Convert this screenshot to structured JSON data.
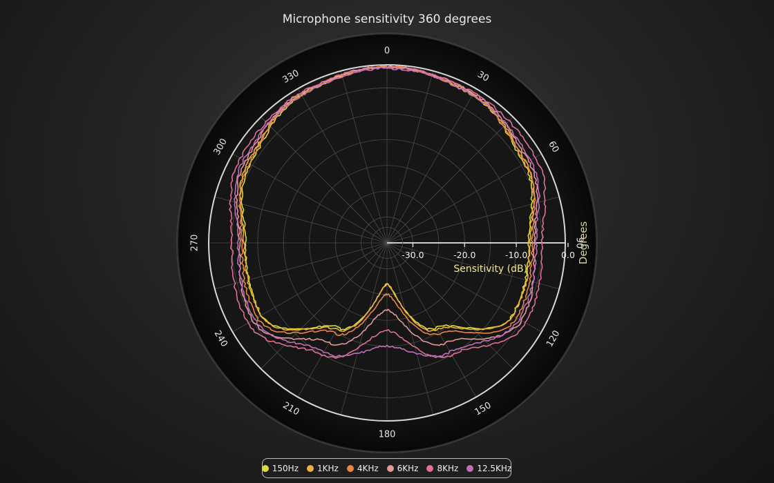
{
  "chart_data": {
    "type": "polar-line",
    "title": "Microphone sensitivity 360 degrees",
    "angular_axis": {
      "label": "Degrees",
      "ticks": [
        "0",
        "30",
        "60",
        "90",
        "120",
        "150",
        "180",
        "210",
        "240",
        "270",
        "300",
        "330"
      ],
      "direction": "clockwise",
      "zero_at": "top"
    },
    "radial_axis": {
      "label": "Sensitivity (dB)",
      "range": [
        -35,
        0
      ],
      "ticks": [
        "-30.0",
        "-20.0",
        "-10.0",
        "0.0"
      ]
    },
    "legend_position": "bottom",
    "grid": true,
    "series": [
      {
        "name": "150Hz",
        "color": "#d8dc3a",
        "angles": [
          0,
          30,
          60,
          90,
          120,
          150,
          180,
          210,
          240,
          270,
          300,
          330
        ],
        "values": [
          -0.9,
          -2.0,
          -4.4,
          -7.6,
          -7.0,
          -16.0,
          -27.0,
          -16.0,
          -7.0,
          -7.6,
          -4.5,
          -2.0
        ]
      },
      {
        "name": "1KHz",
        "color": "#f0b040",
        "angles": [
          0,
          30,
          60,
          90,
          120,
          150,
          180,
          210,
          240,
          270,
          300,
          330
        ],
        "values": [
          -0.9,
          -1.8,
          -4.0,
          -7.4,
          -6.9,
          -15.6,
          -27.0,
          -15.6,
          -6.9,
          -7.4,
          -4.0,
          -1.8
        ]
      },
      {
        "name": "4KHz",
        "color": "#e8864a",
        "angles": [
          0,
          30,
          60,
          90,
          120,
          150,
          180,
          210,
          240,
          270,
          300,
          330
        ],
        "values": [
          -0.9,
          -1.9,
          -4.2,
          -6.9,
          -6.0,
          -14.8,
          -25.0,
          -14.8,
          -6.0,
          -6.9,
          -4.2,
          -1.9
        ]
      },
      {
        "name": "6KHz",
        "color": "#e09a9a",
        "angles": [
          0,
          30,
          60,
          90,
          120,
          150,
          180,
          210,
          240,
          270,
          300,
          330
        ],
        "values": [
          -0.9,
          -1.6,
          -3.4,
          -6.5,
          -5.0,
          -12.6,
          -22.0,
          -12.6,
          -5.0,
          -6.5,
          -3.4,
          -1.6
        ]
      },
      {
        "name": "8KHz",
        "color": "#e0709a",
        "angles": [
          0,
          30,
          60,
          90,
          120,
          150,
          180,
          210,
          240,
          270,
          300,
          330
        ],
        "values": [
          -1.0,
          -1.5,
          -1.8,
          -5.0,
          -4.0,
          -10.0,
          -18.0,
          -10.0,
          -4.0,
          -5.0,
          -2.3,
          -1.5
        ]
      },
      {
        "name": "12.5KHz",
        "color": "#c070b8",
        "angles": [
          0,
          30,
          60,
          90,
          120,
          150,
          180,
          210,
          240,
          270,
          300,
          330
        ],
        "values": [
          -1.2,
          -2.0,
          -3.0,
          -6.2,
          -5.5,
          -10.6,
          -15.0,
          -10.6,
          -5.5,
          -6.2,
          -3.0,
          -2.0
        ]
      }
    ]
  }
}
